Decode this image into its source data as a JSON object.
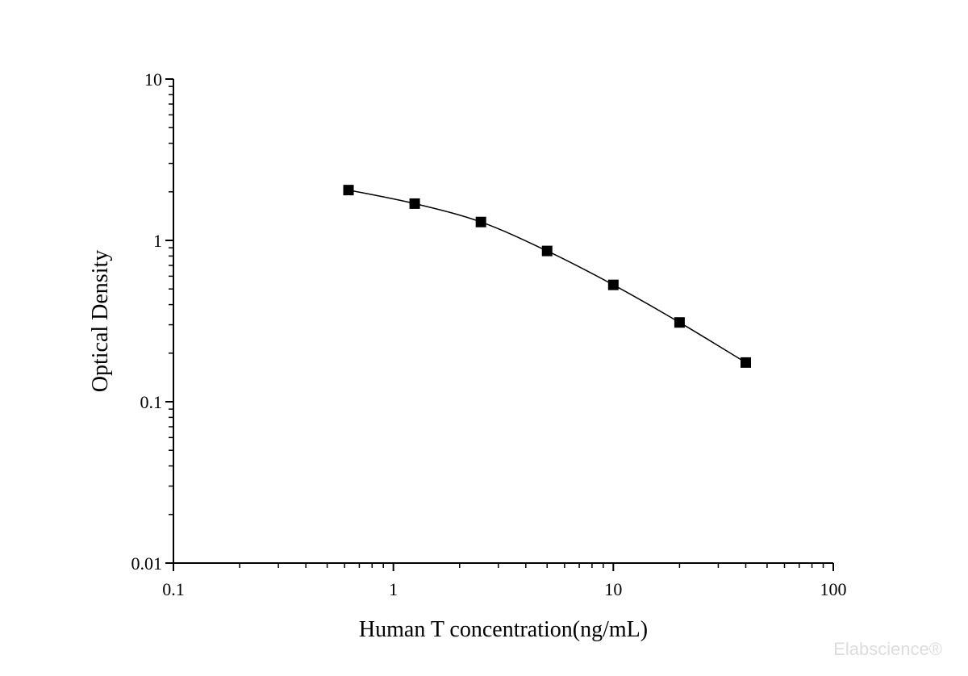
{
  "chart_data": {
    "type": "scatter",
    "title": "",
    "xlabel": "Human T concentration(ng/mL)",
    "ylabel": "Optical Density",
    "xscale": "log",
    "yscale": "log",
    "xlim": [
      0.1,
      100
    ],
    "ylim": [
      0.01,
      10
    ],
    "xticks": [
      "0.1",
      "1",
      "10",
      "100"
    ],
    "yticks": [
      "0.01",
      "0.1",
      "1",
      "10"
    ],
    "grid": false,
    "marker": "square",
    "connected": true,
    "series": [
      {
        "x": [
          0.625,
          1.25,
          2.5,
          5,
          10,
          20,
          40
        ],
        "y": [
          2.05,
          1.69,
          1.3,
          0.86,
          0.53,
          0.31,
          0.175
        ]
      }
    ],
    "colors": {
      "marker": "#000000",
      "line": "#000000",
      "axis": "#000000"
    }
  },
  "watermark": "Elabscience®"
}
